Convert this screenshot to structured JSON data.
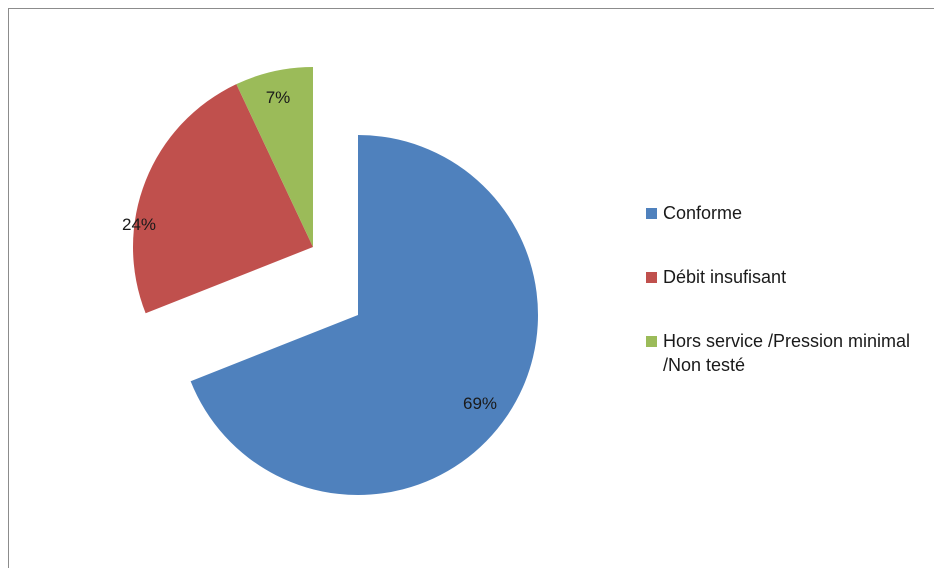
{
  "chart_data": {
    "type": "pie",
    "title": "",
    "legend_position": "right",
    "exploded": true,
    "slices": [
      {
        "label": "Conforme",
        "value": 69,
        "display": "69%",
        "color": "#4f81bd"
      },
      {
        "label": "Débit insufisant",
        "value": 24,
        "display": "24%",
        "color": "#c0504d"
      },
      {
        "label": "Hors service /Pression minimal /Non testé",
        "value": 7,
        "display": "7%",
        "color": "#9bbb59"
      }
    ]
  }
}
